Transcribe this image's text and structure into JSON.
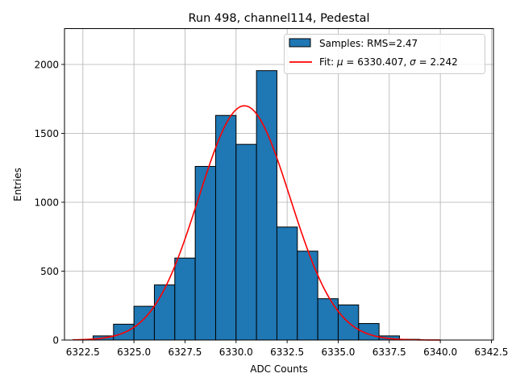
{
  "chart_data": {
    "type": "bar",
    "title": "Run 498, channel114, Pedestal",
    "xlabel": "ADC Counts",
    "ylabel": "Entries",
    "xlim": [
      6321.6,
      6342.6
    ],
    "ylim": [
      0,
      2260
    ],
    "grid": true,
    "legend_position": "top-right",
    "x_ticks": [
      6322.5,
      6325.0,
      6327.5,
      6330.0,
      6332.5,
      6335.0,
      6337.5,
      6340.0,
      6342.5
    ],
    "x_tick_labels": [
      "6322.5",
      "6325.0",
      "6327.5",
      "6330.0",
      "6332.5",
      "6335.0",
      "6337.5",
      "6340.0",
      "6342.5"
    ],
    "y_ticks": [
      0,
      500,
      1000,
      1500,
      2000
    ],
    "y_tick_labels": [
      "0",
      "500",
      "1000",
      "1500",
      "2000"
    ],
    "histogram": {
      "name": "Samples: RMS=2.47",
      "color": "#1f77b4",
      "edgecolor": "#000000",
      "bin_edges": [
        6322.0,
        6323.0,
        6324.0,
        6325.0,
        6326.0,
        6327.0,
        6328.0,
        6329.0,
        6330.0,
        6331.0,
        6332.0,
        6333.0,
        6334.0,
        6335.0,
        6336.0,
        6337.0,
        6338.0,
        6339.0,
        6340.0,
        6341.0,
        6342.0
      ],
      "counts": [
        0,
        30,
        115,
        245,
        400,
        595,
        1260,
        1630,
        1420,
        1955,
        820,
        645,
        300,
        255,
        120,
        30,
        5,
        0,
        0,
        0
      ]
    },
    "fit": {
      "name": "Fit: $\\mu$ = 6330.407, $\\sigma$ = 2.242",
      "legend_prefix": "Fit: ",
      "mu_symbol": "μ",
      "mu_text": " = 6330.407, ",
      "sigma_symbol": "σ",
      "sigma_text": " = 2.242",
      "color": "#ff0000",
      "function": "gaussian",
      "mu": 6330.407,
      "sigma": 2.242,
      "amplitude": 1700,
      "x_range": [
        6322.0,
        6340.0
      ]
    }
  }
}
